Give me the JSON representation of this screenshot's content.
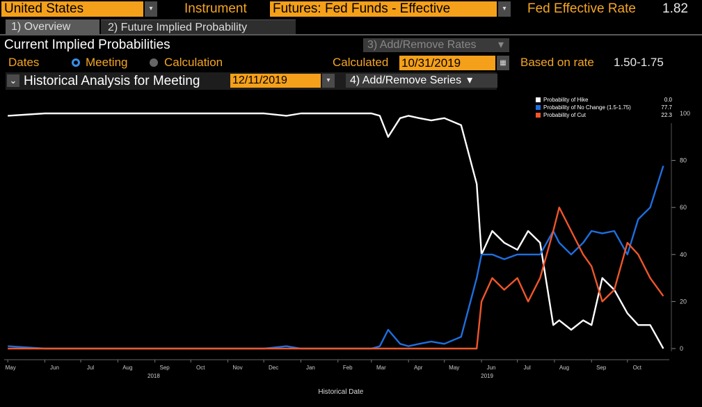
{
  "header": {
    "country": "United States",
    "instrument_label": "Instrument",
    "instrument_value": "Futures: Fed Funds - Effective",
    "rate_label": "Fed Effective Rate",
    "rate_value": "1.82"
  },
  "tabs": [
    {
      "label": "1) Overview"
    },
    {
      "label": "2) Future Implied Probability"
    }
  ],
  "section": {
    "title": "Current Implied Probabilities",
    "add_remove_rates": "3) Add/Remove Rates",
    "dates_label": "Dates",
    "radio_meeting": "Meeting",
    "radio_calculation": "Calculation",
    "calculated_label": "Calculated",
    "calculated_value": "10/31/2019",
    "based_label": "Based on rate",
    "based_value": "1.50-1.75",
    "hist_label": "Historical Analysis for Meeting",
    "hist_value": "12/11/2019",
    "add_remove_series": "4) Add/Remove Series"
  },
  "colors": {
    "accent": "#f5a01a",
    "hike": "#ffffff",
    "no_change": "#1e6fe0",
    "cut": "#f0562a"
  },
  "chart_data": {
    "type": "line",
    "xlabel": "Historical Date",
    "ylabel": "",
    "ylim": [
      0,
      100
    ],
    "yticks": [
      0,
      20,
      40,
      60,
      80,
      100
    ],
    "x_month_labels": [
      "May",
      "Jun",
      "Jul",
      "Aug",
      "Sep",
      "Oct",
      "Nov",
      "Dec",
      "Jan",
      "Feb",
      "Mar",
      "Apr",
      "May",
      "Jun",
      "Jul",
      "Aug",
      "Sep",
      "Oct"
    ],
    "year_labels": [
      "2018",
      "2019"
    ],
    "legend": [
      {
        "name": "Probability of Hike",
        "value": "0.0"
      },
      {
        "name": "Probability of No Change (1.5-1.75)",
        "value": "77.7"
      },
      {
        "name": "Probability of Cut",
        "value": "22.3"
      }
    ],
    "x_dates": [
      "2018-05-01",
      "2018-06-01",
      "2018-07-01",
      "2018-08-01",
      "2018-09-01",
      "2018-10-01",
      "2018-11-01",
      "2018-12-01",
      "2018-12-20",
      "2019-01-01",
      "2019-02-01",
      "2019-03-01",
      "2019-03-08",
      "2019-03-15",
      "2019-03-25",
      "2019-04-01",
      "2019-04-10",
      "2019-04-20",
      "2019-05-01",
      "2019-05-15",
      "2019-05-28",
      "2019-06-01",
      "2019-06-10",
      "2019-06-20",
      "2019-07-01",
      "2019-07-10",
      "2019-07-20",
      "2019-07-31",
      "2019-08-05",
      "2019-08-15",
      "2019-08-25",
      "2019-09-01",
      "2019-09-10",
      "2019-09-20",
      "2019-10-01",
      "2019-10-10",
      "2019-10-20",
      "2019-10-31"
    ],
    "series": [
      {
        "name": "Probability of Hike",
        "color": "#ffffff",
        "values": [
          99,
          100,
          100,
          100,
          100,
          100,
          100,
          100,
          99,
          100,
          100,
          100,
          99,
          90,
          98,
          99,
          98,
          97,
          98,
          95,
          70,
          40,
          50,
          45,
          42,
          50,
          45,
          10,
          12,
          8,
          12,
          10,
          30,
          25,
          15,
          10,
          10,
          0
        ]
      },
      {
        "name": "Probability of No Change (1.5-1.75)",
        "color": "#1e6fe0",
        "values": [
          1,
          0,
          0,
          0,
          0,
          0,
          0,
          0,
          1,
          0,
          0,
          0,
          1,
          8,
          2,
          1,
          2,
          3,
          2,
          5,
          30,
          40,
          40,
          38,
          40,
          40,
          40,
          50,
          45,
          40,
          45,
          50,
          49,
          50,
          40,
          55,
          60,
          77.7
        ]
      },
      {
        "name": "Probability of Cut",
        "color": "#f0562a",
        "values": [
          0,
          0,
          0,
          0,
          0,
          0,
          0,
          0,
          0,
          0,
          0,
          0,
          0,
          0,
          0,
          0,
          0,
          0,
          0,
          0,
          0,
          20,
          30,
          25,
          30,
          20,
          30,
          50,
          60,
          50,
          40,
          35,
          20,
          25,
          45,
          40,
          30,
          22.3
        ]
      }
    ]
  }
}
